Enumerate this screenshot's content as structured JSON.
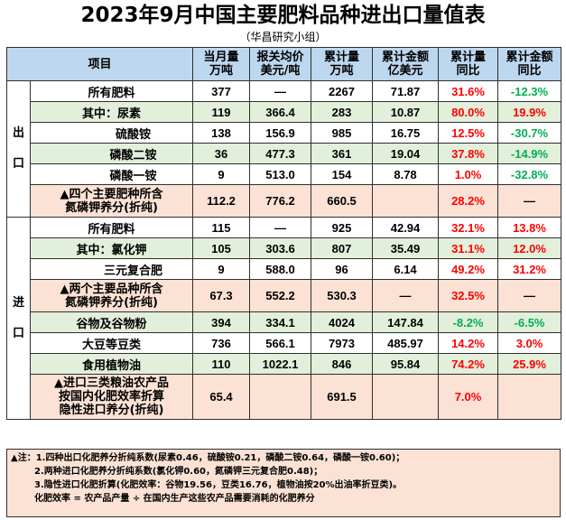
{
  "title": "2023年9月中国主要肥料品种进出口量值表",
  "subtitle": "（华昌研究小组）",
  "header": {
    "item": "项目",
    "col1": [
      "当月量",
      "万吨"
    ],
    "col2": [
      "报关均价",
      "美元/吨"
    ],
    "col3": [
      "累计量",
      "万吨"
    ],
    "col4": [
      "累计金额",
      "亿美元"
    ],
    "col5": [
      "累计量",
      "同比"
    ],
    "col6": [
      "累计金额",
      "同比"
    ]
  },
  "sections": {
    "export": [
      "出",
      "口"
    ],
    "import": [
      "进",
      "口"
    ]
  },
  "export_rows": [
    {
      "label": [
        "所有肥料"
      ],
      "v": [
        "377",
        "—",
        "2267",
        "71.87",
        "31.6%",
        "-12.3%"
      ]
    },
    {
      "label": [
        "其中：尿素"
      ],
      "v": [
        "119",
        "366.4",
        "283",
        "10.87",
        "80.0%",
        "19.9%"
      ]
    },
    {
      "label": [
        "硫酸铵"
      ],
      "v": [
        "138",
        "156.9",
        "985",
        "16.75",
        "12.5%",
        "-30.7%"
      ]
    },
    {
      "label": [
        "磷酸二铵"
      ],
      "v": [
        "36",
        "477.3",
        "361",
        "19.04",
        "37.8%",
        "-14.9%"
      ]
    },
    {
      "label": [
        "磷酸一铵"
      ],
      "v": [
        "9",
        "513.0",
        "154",
        "8.78",
        "1.0%",
        "-32.8%"
      ]
    },
    {
      "label": [
        "▲四个主要肥种所含",
        "氮磷钾养分(折纯)"
      ],
      "v": [
        "112.2",
        "776.2",
        "660.5",
        "",
        "28.2%",
        "—"
      ]
    }
  ],
  "import_rows": [
    {
      "label": [
        "所有肥料"
      ],
      "v": [
        "115",
        "—",
        "925",
        "42.94",
        "32.1%",
        "13.8%"
      ]
    },
    {
      "label": [
        "其中：氯化钾"
      ],
      "v": [
        "105",
        "303.6",
        "807",
        "35.49",
        "31.1%",
        "12.0%"
      ]
    },
    {
      "label": [
        "三元复合肥"
      ],
      "v": [
        "9",
        "588.0",
        "96",
        "6.14",
        "49.2%",
        "31.2%"
      ]
    },
    {
      "label": [
        "▲两个主要品种所含",
        "氮磷钾养分(折纯)"
      ],
      "v": [
        "67.3",
        "552.2",
        "530.3",
        "—",
        "32.5%",
        "—"
      ]
    },
    {
      "label": [
        "谷物及谷物粉"
      ],
      "v": [
        "394",
        "334.1",
        "4024",
        "147.84",
        "-8.2%",
        "-6.5%"
      ]
    },
    {
      "label": [
        "大豆等豆类"
      ],
      "v": [
        "736",
        "566.1",
        "7973",
        "485.97",
        "14.2%",
        "3.0%"
      ]
    },
    {
      "label": [
        "食用植物油"
      ],
      "v": [
        "110",
        "1022.1",
        "846",
        "95.84",
        "74.2%",
        "25.9%"
      ]
    },
    {
      "label": [
        "▲进口三类粮油农产品",
        "按国内化肥效率折算",
        "隐性进口养分(折纯)"
      ],
      "v": [
        "65.4",
        "",
        "691.5",
        "",
        "7.0%",
        ""
      ]
    }
  ],
  "notes": [
    "▲注：1.四种出口化肥养分折纯系数(尿素0.46，硫酸铵0.21，磷酸二铵0.64，磷酸一铵0.60)；",
    "2.两种进口化肥养分折纯系数(氯化钾0.60，氮磷钾三元复合肥0.48)；",
    "3.隐性进口化肥折算(化肥效率：谷物19.56，豆类16.76，植物油按20%出油率折豆类)。",
    "化肥效率 = 农产品产量 ÷ 在国内生产这些农产品需要消耗的化肥养分"
  ],
  "colors": {
    "header_bg": "#bdd7ee",
    "green_row": "#e2efda",
    "orange_row": "#fbe2d5",
    "positive": "#ff0000",
    "negative": "#00b050"
  }
}
